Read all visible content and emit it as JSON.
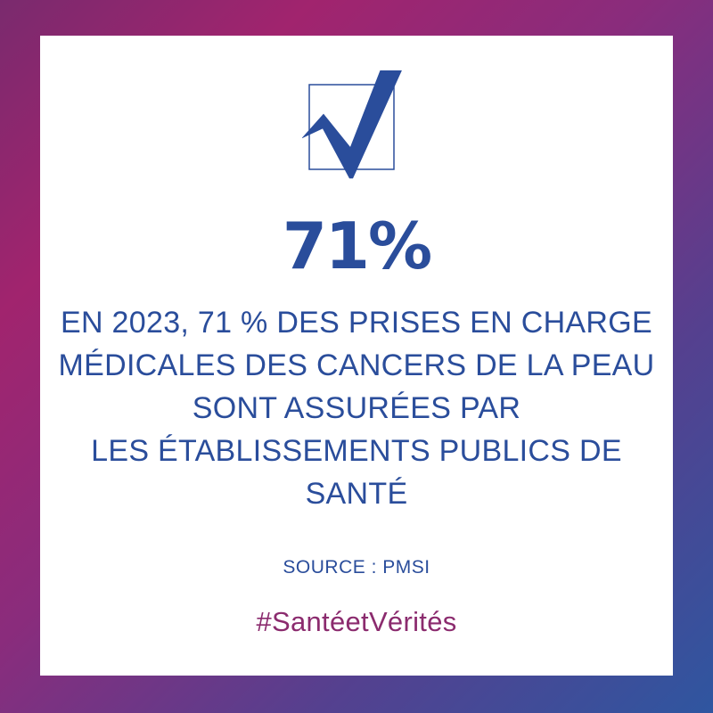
{
  "stat": {
    "value": "71%"
  },
  "description": {
    "lines": [
      "EN 2023, 71 % DES PRISES EN CHARGE",
      "MÉDICALES DES CANCERS DE LA PEAU",
      "SONT ASSURÉES PAR",
      "LES ÉTABLISSEMENTS PUBLICS DE",
      "SANTÉ"
    ]
  },
  "source": {
    "text": "SOURCE : PMSI"
  },
  "hashtag": {
    "text": "#SantéetVérités"
  },
  "icons": {
    "check": "checkbox-checkmark-icon"
  },
  "colors": {
    "primary_blue": "#2a4d9b",
    "hashtag_purple": "#8b2b6e",
    "gradient_start": "#a1246e",
    "gradient_end": "#2f56a0",
    "card_background": "#ffffff"
  }
}
